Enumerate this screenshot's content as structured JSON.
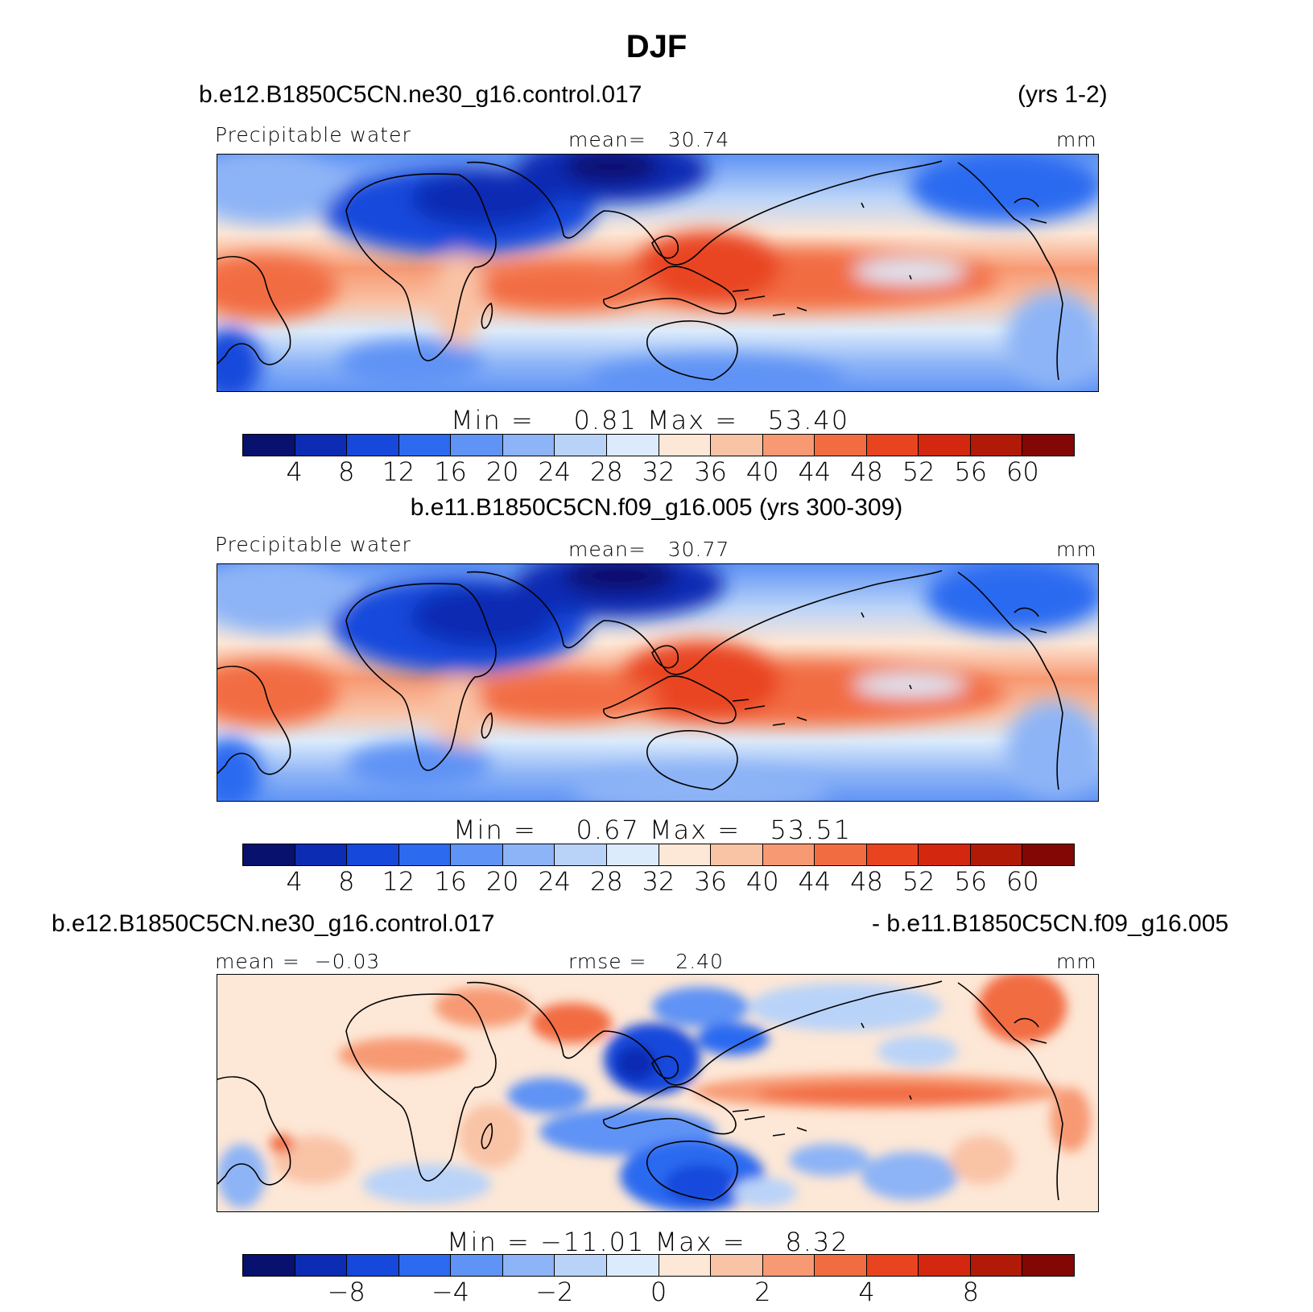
{
  "figure": {
    "title": "DJF",
    "colors": [
      "#08116e",
      "#0b2cb3",
      "#1648dc",
      "#2c6af0",
      "#5f93f5",
      "#8db4f6",
      "#b9d3f8",
      "#dcebfb",
      "#fde7d6",
      "#f9c3a6",
      "#f79a73",
      "#f26c42",
      "#e94420",
      "#d42710",
      "#b21a08",
      "#830705"
    ]
  },
  "panel1": {
    "case": "b.e12.B1850C5CN.ne30_g16.control.017",
    "years": "(yrs 1-2)",
    "variable": "Precipitable water",
    "mean_label": "mean=",
    "mean": "30.74",
    "units": "mm",
    "min_label": "Min =",
    "min": "0.81",
    "max_label": "Max =",
    "max": "53.40",
    "ticks": [
      "4",
      "8",
      "12",
      "16",
      "20",
      "24",
      "28",
      "32",
      "36",
      "40",
      "44",
      "48",
      "52",
      "56",
      "60"
    ]
  },
  "panel2": {
    "case": "b.e11.B1850C5CN.f09_g16.005 (yrs 300-309)",
    "variable": "Precipitable water",
    "mean_label": "mean=",
    "mean": "30.77",
    "units": "mm",
    "min_label": "Min =",
    "min": "0.67",
    "max_label": "Max =",
    "max": "53.51",
    "ticks": [
      "4",
      "8",
      "12",
      "16",
      "20",
      "24",
      "28",
      "32",
      "36",
      "40",
      "44",
      "48",
      "52",
      "56",
      "60"
    ]
  },
  "panel3": {
    "case_left": "b.e12.B1850C5CN.ne30_g16.control.017",
    "case_right": "- b.e11.B1850C5CN.f09_g16.005",
    "mean_label": "mean =",
    "mean": "−0.03",
    "rmse_label": "rmse =",
    "rmse": "2.40",
    "units": "mm",
    "min_label": "Min =",
    "min": "−11.01",
    "max_label": "Max =",
    "max": "8.32",
    "ticks": [
      {
        "label": "−8",
        "boundary": 2
      },
      {
        "label": "−4",
        "boundary": 4
      },
      {
        "label": "−2",
        "boundary": 6
      },
      {
        "label": "0",
        "boundary": 8
      },
      {
        "label": "2",
        "boundary": 10
      },
      {
        "label": "4",
        "boundary": 12
      },
      {
        "label": "8",
        "boundary": 14
      }
    ]
  }
}
